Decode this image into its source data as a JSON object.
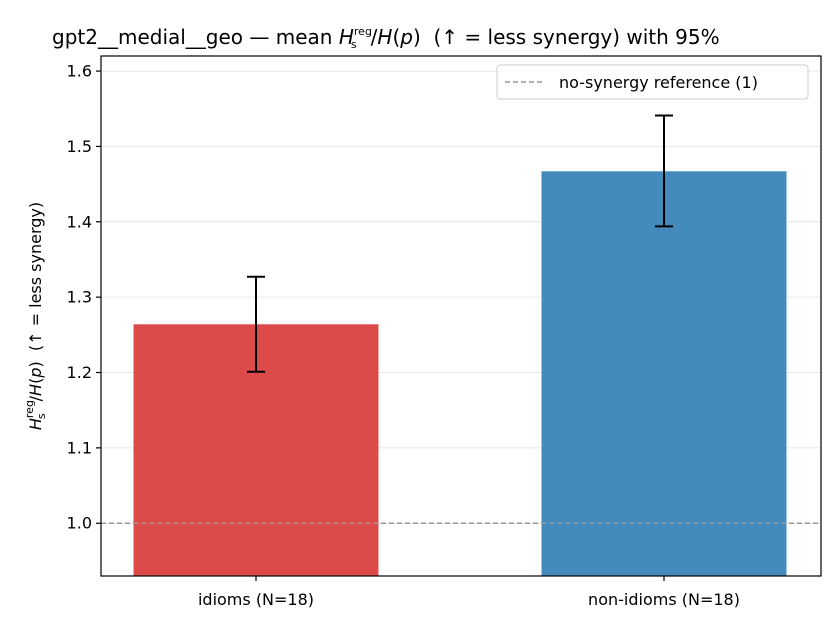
{
  "chart_data": {
    "type": "bar",
    "title": {
      "prefix": "gpt2__medial__geo — mean ",
      "h_italic": "H",
      "sub": "s",
      "sup": "reg",
      "slash": "/",
      "hp_italic": "H",
      "hp_rest": "(",
      "p_italic": "p",
      "close": ")",
      "suffix": "  (↑ = less synergy) with 95%"
    },
    "ylabel": {
      "h_italic": "H",
      "sub": "s",
      "sup": "reg",
      "slash": "/",
      "hp_italic": "H",
      "open": "(",
      "p_italic": "p",
      "close": ")",
      "suffix": "  (↑ = less synergy)"
    },
    "categories": [
      "idioms (N=18)",
      "non-idioms (N=18)"
    ],
    "values": [
      1.264,
      1.467
    ],
    "ci_low": [
      1.201,
      1.394
    ],
    "ci_high": [
      1.327,
      1.541
    ],
    "colors": [
      "#dc4a4a",
      "#438bbd"
    ],
    "ylim": [
      0.93,
      1.62
    ],
    "yticks": [
      1.0,
      1.1,
      1.2,
      1.3,
      1.4,
      1.5,
      1.6
    ],
    "ytick_labels": [
      "1.0",
      "1.1",
      "1.2",
      "1.3",
      "1.4",
      "1.5",
      "1.6"
    ],
    "reference_line": {
      "value": 1.0,
      "label": "no-synergy reference (1)",
      "color": "#999999"
    },
    "grid": "y",
    "legend_position": "top-right"
  }
}
